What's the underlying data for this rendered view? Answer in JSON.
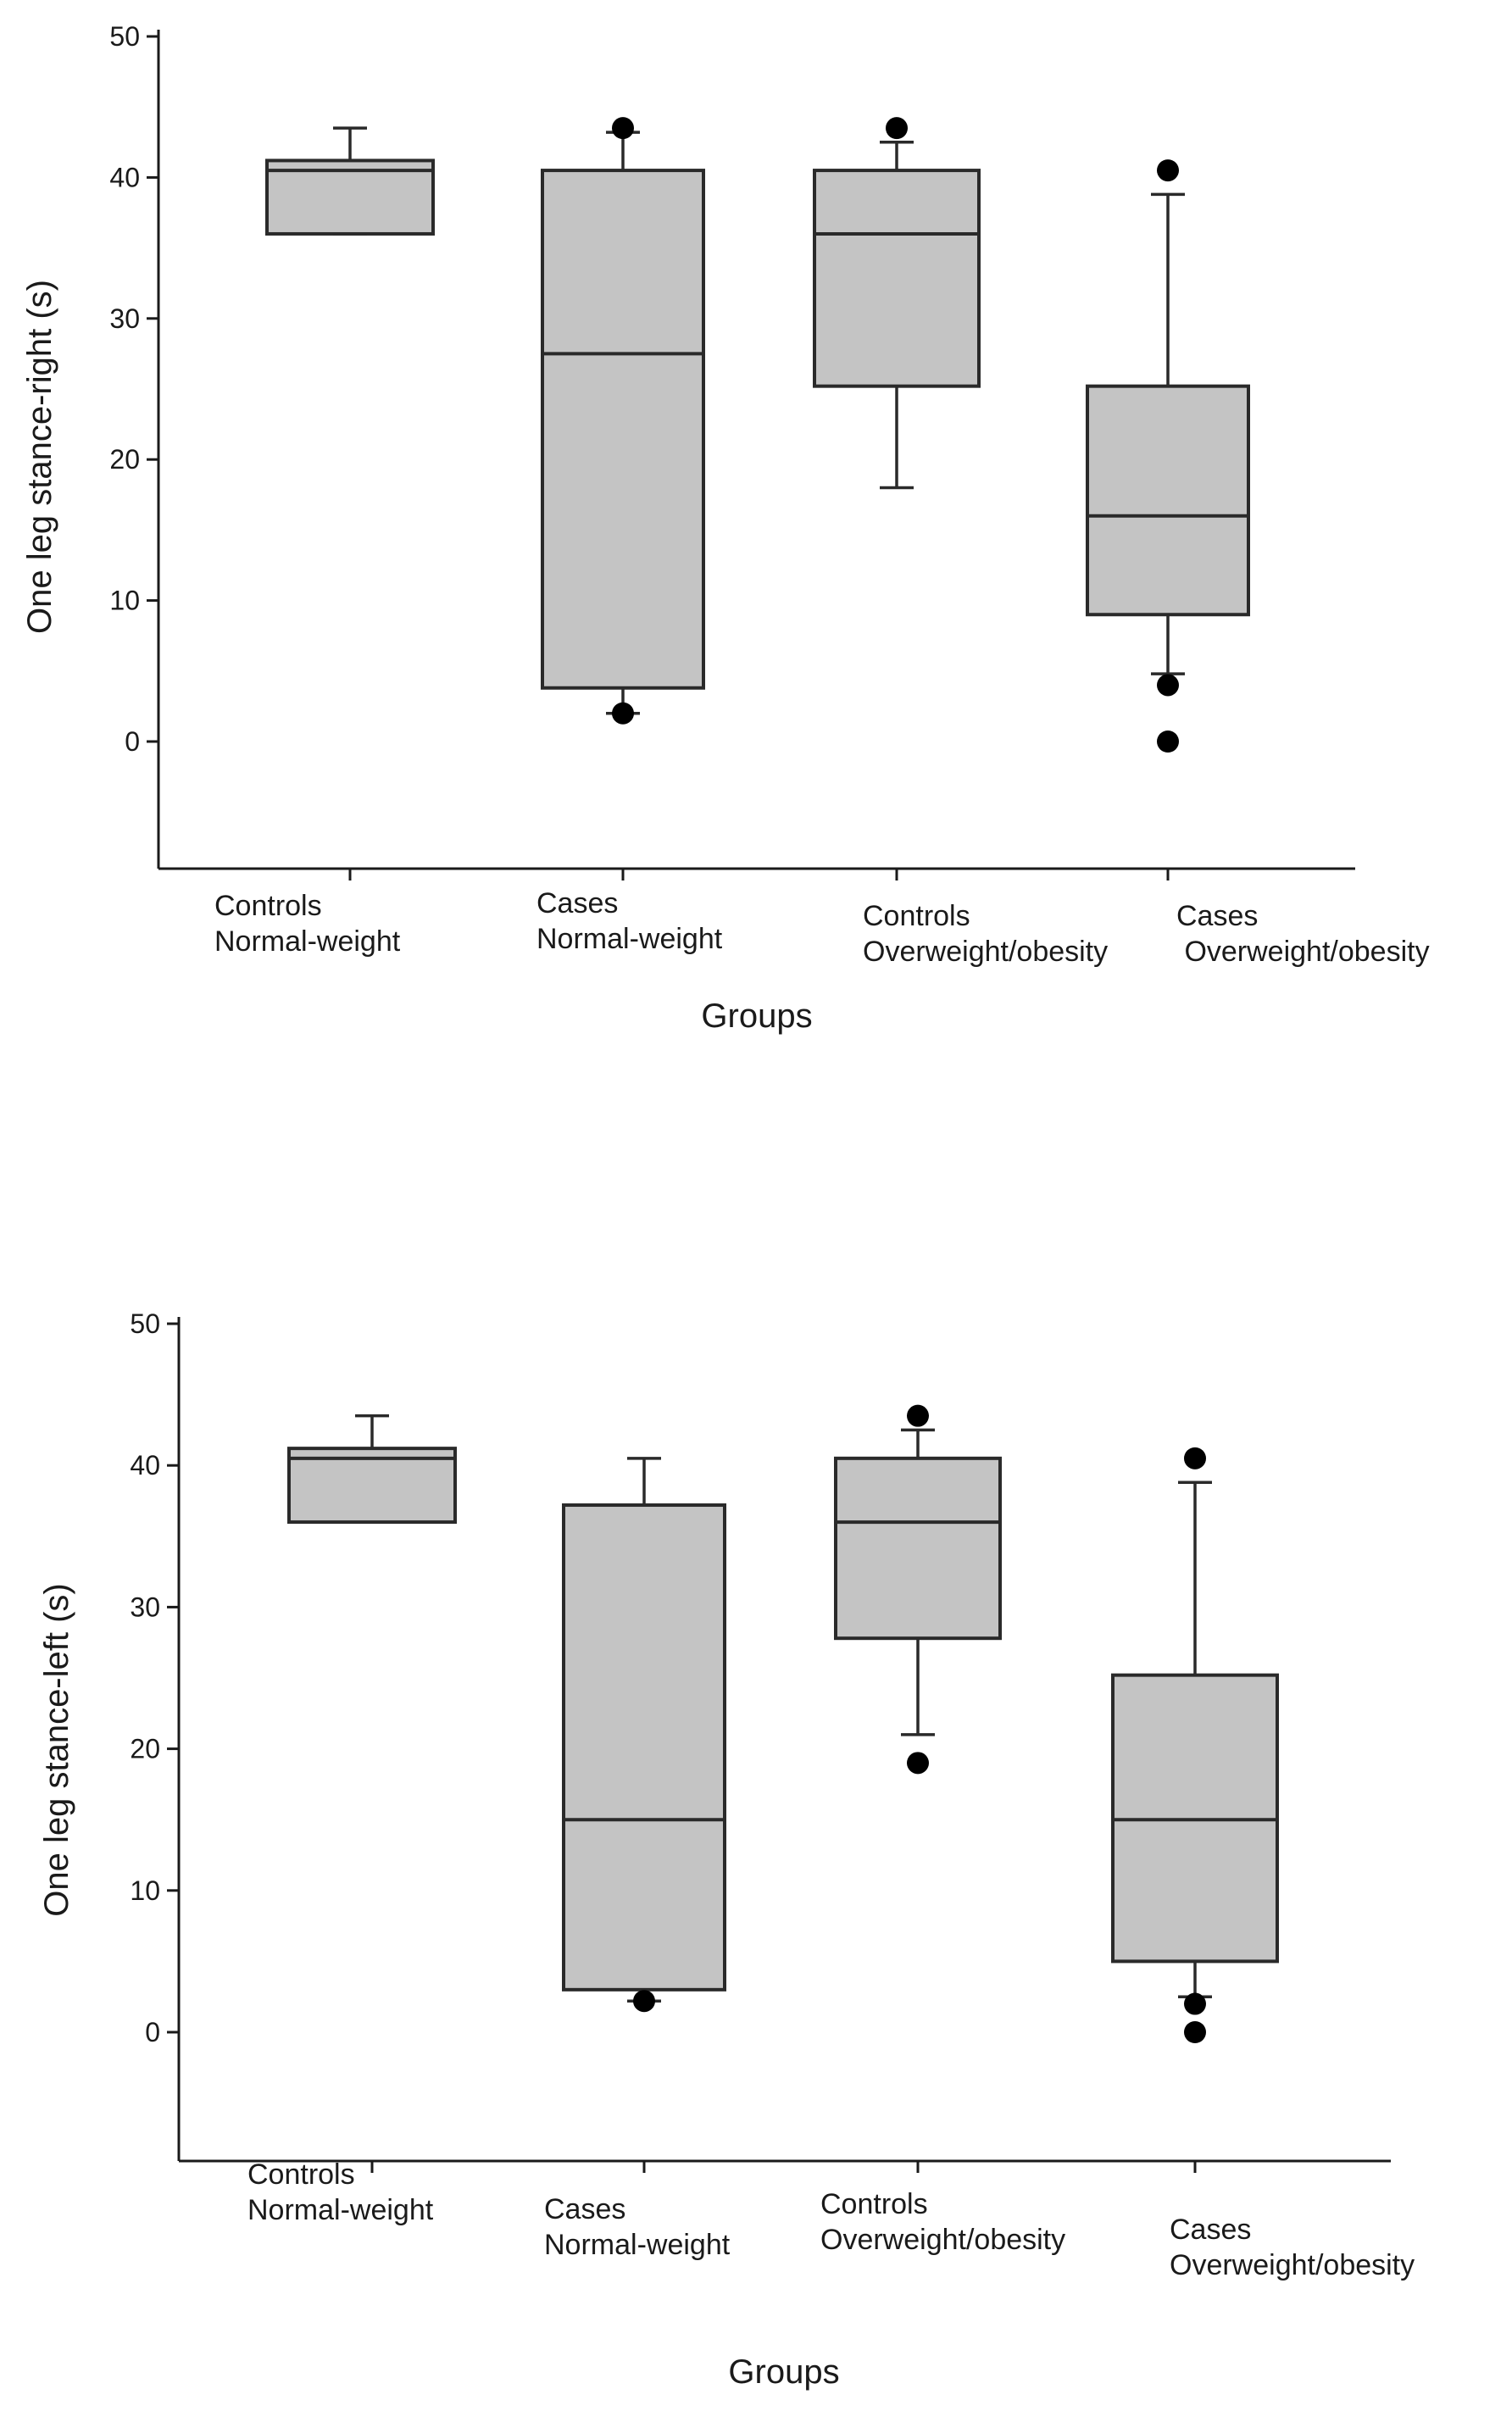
{
  "chart_data": [
    {
      "type": "box",
      "title": "",
      "xlabel": "Groups",
      "ylabel": "One leg stance-right (s)",
      "ylim": [
        -9,
        50
      ],
      "yticks": [
        0,
        10,
        20,
        30,
        40,
        50
      ],
      "categories": [
        [
          "Controls",
          "Normal-weight"
        ],
        [
          "Cases",
          "Normal-weight"
        ],
        [
          "Controls",
          "Overweight/obesity"
        ],
        [
          "Cases",
          " Overweight/obesity"
        ]
      ],
      "boxes": [
        {
          "whisker_low": 36,
          "q1": 36,
          "median": 40.5,
          "q3": 41.2,
          "whisker_high": 43.5,
          "outliers": []
        },
        {
          "whisker_low": 2,
          "q1": 3.8,
          "median": 27.5,
          "q3": 40.5,
          "whisker_high": 43.2,
          "outliers": [
            43.5,
            2
          ]
        },
        {
          "whisker_low": 18,
          "q1": 25.2,
          "median": 36,
          "q3": 40.5,
          "whisker_high": 42.5,
          "outliers": [
            43.5
          ]
        },
        {
          "whisker_low": 4.8,
          "q1": 9,
          "median": 16,
          "q3": 25.2,
          "whisker_high": 38.8,
          "outliers": [
            40.5,
            4,
            0
          ]
        }
      ]
    },
    {
      "type": "box",
      "title": "",
      "xlabel": "Groups",
      "ylabel": "One leg stance-left (s)",
      "ylim": [
        -9,
        50
      ],
      "yticks": [
        0,
        10,
        20,
        30,
        40,
        50
      ],
      "categories": [
        [
          "Controls",
          "Normal-weight"
        ],
        [
          "Cases",
          "Normal-weight"
        ],
        [
          "Controls",
          "Overweight/obesity"
        ],
        [
          "Cases",
          "Overweight/obesity"
        ]
      ],
      "boxes": [
        {
          "whisker_low": 36,
          "q1": 36,
          "median": 40.5,
          "q3": 41.2,
          "whisker_high": 43.5,
          "outliers": []
        },
        {
          "whisker_low": 2.2,
          "q1": 3,
          "median": 15,
          "q3": 37.2,
          "whisker_high": 40.5,
          "outliers": [
            2.2
          ]
        },
        {
          "whisker_low": 21,
          "q1": 27.8,
          "median": 36,
          "q3": 40.5,
          "whisker_high": 42.5,
          "outliers": [
            43.5,
            19
          ]
        },
        {
          "whisker_low": 2.5,
          "q1": 5,
          "median": 15,
          "q3": 25.2,
          "whisker_high": 38.8,
          "outliers": [
            40.5,
            2,
            0
          ]
        }
      ]
    }
  ]
}
